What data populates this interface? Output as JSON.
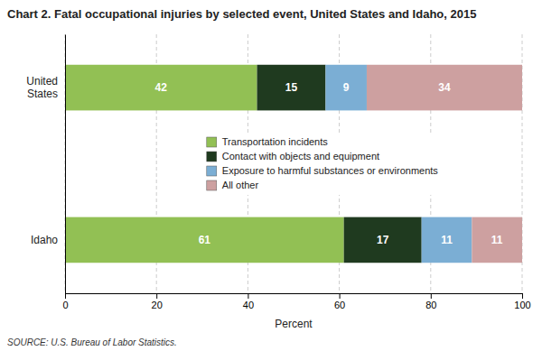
{
  "chart_data": {
    "type": "bar",
    "orientation": "horizontal",
    "stacked": true,
    "title": "Chart 2.  Fatal occupational injuries by selected event, United States and Idaho, 2015",
    "categories": [
      "Idaho",
      "United\nStates"
    ],
    "series": [
      {
        "name": "Transportation incidents",
        "color": "#92C054",
        "values": [
          61,
          42
        ]
      },
      {
        "name": "Contact with objects and equipment",
        "color": "#1F3A1F",
        "values": [
          17,
          15
        ]
      },
      {
        "name": "Exposure to harmful substances or environments",
        "color": "#7BAED4",
        "values": [
          11,
          9
        ]
      },
      {
        "name": "All other",
        "color": "#CDA0A0",
        "values": [
          11,
          34
        ]
      }
    ],
    "xlim": [
      0,
      100
    ],
    "xticks": [
      0,
      20,
      40,
      60,
      80,
      100
    ],
    "xlabel": "Percent",
    "annotations": [
      "SOURCE: U.S. Bureau of Labor Statistics."
    ],
    "data_labels": true,
    "grid": true,
    "legend": "center"
  }
}
